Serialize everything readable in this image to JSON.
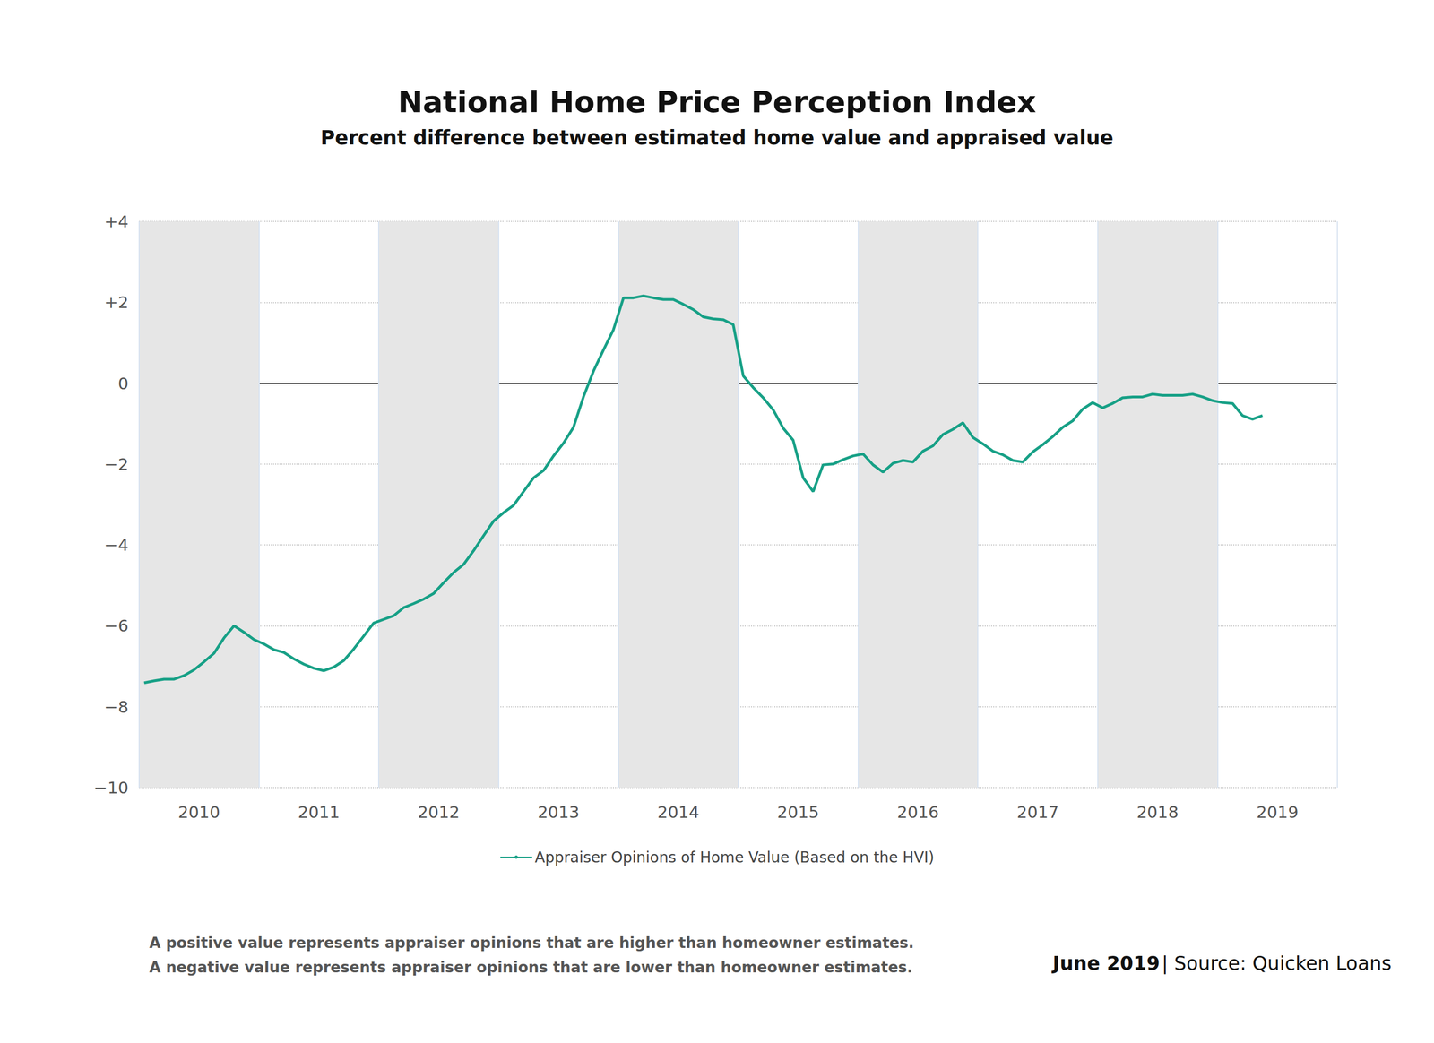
{
  "chart_data": {
    "type": "line",
    "title": "National Home Price Perception Index",
    "subtitle": "Percent difference between estimated home value and appraised value",
    "x": [
      2010.042,
      2010.125,
      2010.208,
      2010.292,
      2010.375,
      2010.458,
      2010.542,
      2010.625,
      2010.708,
      2010.792,
      2010.875,
      2010.958,
      2011.042,
      2011.125,
      2011.208,
      2011.292,
      2011.375,
      2011.458,
      2011.542,
      2011.625,
      2011.708,
      2011.792,
      2011.875,
      2011.958,
      2012.042,
      2012.125,
      2012.208,
      2012.292,
      2012.375,
      2012.458,
      2012.542,
      2012.625,
      2012.708,
      2012.792,
      2012.875,
      2012.958,
      2013.042,
      2013.125,
      2013.208,
      2013.292,
      2013.375,
      2013.458,
      2013.542,
      2013.625,
      2013.708,
      2013.792,
      2013.875,
      2013.958,
      2014.042,
      2014.125,
      2014.208,
      2014.292,
      2014.375,
      2014.458,
      2014.542,
      2014.625,
      2014.708,
      2014.792,
      2014.875,
      2014.958,
      2015.042,
      2015.125,
      2015.208,
      2015.292,
      2015.375,
      2015.458,
      2015.542,
      2015.625,
      2015.708,
      2015.792,
      2015.875,
      2015.958,
      2016.042,
      2016.125,
      2016.208,
      2016.292,
      2016.375,
      2016.458,
      2016.542,
      2016.625,
      2016.708,
      2016.792,
      2016.875,
      2016.958,
      2017.042,
      2017.125,
      2017.208,
      2017.292,
      2017.375,
      2017.458,
      2017.542,
      2017.625,
      2017.708,
      2017.792,
      2017.875,
      2017.958,
      2018.042,
      2018.125,
      2018.208,
      2018.292,
      2018.375,
      2018.458,
      2018.542,
      2018.625,
      2018.708,
      2018.792,
      2018.875,
      2018.958,
      2019.042,
      2019.125,
      2019.208,
      2019.292,
      2019.375
    ],
    "series": [
      {
        "name": "Appraiser Opinions of Home Value (Based on the HVI)",
        "color": "#17a086",
        "line_style": "solid",
        "values": [
          -7.41,
          -7.36,
          -7.32,
          -7.32,
          -7.23,
          -7.09,
          -6.89,
          -6.68,
          -6.3,
          -6.0,
          -6.16,
          -6.34,
          -6.45,
          -6.59,
          -6.66,
          -6.82,
          -6.95,
          -7.05,
          -7.11,
          -7.02,
          -6.86,
          -6.57,
          -6.25,
          -5.93,
          -5.84,
          -5.75,
          -5.55,
          -5.45,
          -5.34,
          -5.2,
          -4.93,
          -4.68,
          -4.48,
          -4.14,
          -3.77,
          -3.41,
          -3.2,
          -3.02,
          -2.68,
          -2.34,
          -2.16,
          -1.8,
          -1.48,
          -1.09,
          -0.34,
          0.3,
          0.82,
          1.32,
          2.11,
          2.11,
          2.16,
          2.11,
          2.07,
          2.07,
          1.95,
          1.82,
          1.64,
          1.59,
          1.57,
          1.45,
          0.18,
          -0.11,
          -0.36,
          -0.66,
          -1.11,
          -1.41,
          -2.34,
          -2.68,
          -2.02,
          -2.0,
          -1.89,
          -1.8,
          -1.75,
          -2.02,
          -2.2,
          -1.98,
          -1.91,
          -1.95,
          -1.68,
          -1.55,
          -1.27,
          -1.14,
          -0.98,
          -1.34,
          -1.5,
          -1.68,
          -1.77,
          -1.91,
          -1.95,
          -1.7,
          -1.52,
          -1.32,
          -1.09,
          -0.93,
          -0.64,
          -0.48,
          -0.61,
          -0.5,
          -0.36,
          -0.34,
          -0.34,
          -0.27,
          -0.3,
          -0.3,
          -0.3,
          -0.27,
          -0.34,
          -0.43,
          -0.48,
          -0.5,
          -0.8,
          -0.89,
          -0.8
        ]
      }
    ],
    "xlim": [
      2010,
      2020
    ],
    "xticks": [
      {
        "value": 2010.5,
        "label": "2010"
      },
      {
        "value": 2011.5,
        "label": "2011"
      },
      {
        "value": 2012.5,
        "label": "2012"
      },
      {
        "value": 2013.5,
        "label": "2013"
      },
      {
        "value": 2014.5,
        "label": "2014"
      },
      {
        "value": 2015.5,
        "label": "2015"
      },
      {
        "value": 2016.5,
        "label": "2016"
      },
      {
        "value": 2017.5,
        "label": "2017"
      },
      {
        "value": 2018.5,
        "label": "2018"
      },
      {
        "value": 2019.5,
        "label": "2019"
      }
    ],
    "ylim": [
      -10,
      4
    ],
    "yticks": [
      {
        "value": -10,
        "label": "−10"
      },
      {
        "value": -8,
        "label": "−8"
      },
      {
        "value": -6,
        "label": "−6"
      },
      {
        "value": -4,
        "label": "−4"
      },
      {
        "value": -2,
        "label": "−2"
      },
      0,
      {
        "value": 2,
        "label": "+2"
      },
      {
        "value": 4,
        "label": "+4"
      }
    ],
    "grid": true,
    "legend": "bottom",
    "notes": [
      "A positive value represents appraiser opinions that are higher than homeowner estimates.",
      "A negative value represents appraiser opinions that are lower than homeowner estimates."
    ],
    "source": [
      "June 2019",
      "| Source: Quicken Loans"
    ]
  }
}
